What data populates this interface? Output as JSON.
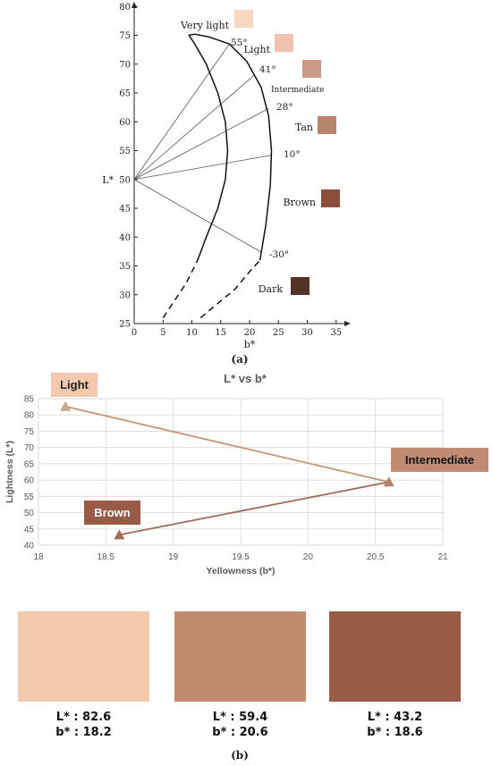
{
  "chart_data": [
    {
      "type": "line",
      "panel_label": "(a)",
      "xlabel": "b*",
      "ylabel": "L*",
      "xlim": [
        0,
        40
      ],
      "ylim": [
        25,
        80
      ],
      "xticks": [
        0,
        5,
        10,
        15,
        20,
        25,
        30,
        35
      ],
      "yticks": [
        25,
        30,
        35,
        40,
        45,
        50,
        55,
        60,
        65,
        70,
        75,
        80
      ],
      "grid": false,
      "origin": [
        0,
        50
      ],
      "boundary_outer_solid": [
        [
          11,
          36
        ],
        [
          12.5,
          40
        ],
        [
          14.5,
          45
        ],
        [
          15.8,
          50
        ],
        [
          16.2,
          55
        ],
        [
          15.8,
          60
        ],
        [
          14.5,
          65
        ],
        [
          12.5,
          70
        ],
        [
          10.5,
          73.5
        ],
        [
          9.5,
          75
        ],
        [
          10.5,
          75.2
        ],
        [
          13,
          74.7
        ],
        [
          16.5,
          73.5
        ],
        [
          19.5,
          70.5
        ],
        [
          22,
          66
        ],
        [
          23.3,
          61
        ],
        [
          23.8,
          55
        ],
        [
          23.6,
          49
        ],
        [
          22.8,
          42
        ],
        [
          21.8,
          36
        ]
      ],
      "boundary_inner_dashed": [
        [
          5,
          26
        ],
        [
          7,
          29
        ],
        [
          9,
          32
        ],
        [
          11,
          36
        ]
      ],
      "boundary_outer_dashed": [
        [
          11.5,
          26
        ],
        [
          14.5,
          28.5
        ],
        [
          17.5,
          31
        ],
        [
          20,
          34
        ],
        [
          21.8,
          36
        ]
      ],
      "hue_angles": [
        {
          "label": "55°",
          "end": [
            16.5,
            73.5
          ]
        },
        {
          "label": "41°",
          "end": [
            20.7,
            68
          ]
        },
        {
          "label": "28°",
          "end": [
            23.3,
            62.3
          ]
        },
        {
          "label": "10°",
          "end": [
            23.8,
            54.2
          ]
        },
        {
          "label": "-30°",
          "end": [
            22,
            37.4
          ]
        }
      ],
      "categories": [
        {
          "name": "Very light",
          "color": "#f8d6c0"
        },
        {
          "name": "Light",
          "color": "#f1c1b2"
        },
        {
          "name": "Intermediate",
          "color": "#c89a86"
        },
        {
          "name": "Tan",
          "color": "#b7856b"
        },
        {
          "name": "Brown",
          "color": "#8c4d3a"
        },
        {
          "name": "Dark",
          "color": "#553228"
        }
      ]
    },
    {
      "type": "scatter",
      "panel_label": "(b)",
      "title": "L* vs b*",
      "xlabel": "Yellowness (b*)",
      "ylabel": "Lightness (L*)",
      "xlim": [
        18,
        21
      ],
      "ylim": [
        40,
        85
      ],
      "xticks": [
        18,
        18.5,
        19,
        19.5,
        20,
        20.5,
        21
      ],
      "yticks": [
        40,
        45,
        50,
        55,
        60,
        65,
        70,
        75,
        80,
        85
      ],
      "grid": true,
      "points": [
        {
          "name": "Light",
          "x": 18.2,
          "y": 82.6,
          "color": "#c7a48f",
          "label_bg": "#f2c9ac",
          "label_color": "#222222"
        },
        {
          "name": "Intermediate",
          "x": 20.6,
          "y": 59.4,
          "color": "#b5806a",
          "label_bg": "#c08b72",
          "label_color": "#111111"
        },
        {
          "name": "Brown",
          "x": 18.6,
          "y": 43.2,
          "color": "#a76b58",
          "label_bg": "#995a46",
          "label_color": "#ffffff"
        }
      ],
      "connector_colors": [
        "#c49779",
        "#a06a58"
      ]
    }
  ],
  "swatches": [
    {
      "color": "#f2c9ab",
      "l_text": "L* : 82.6",
      "b_text": "b* : 18.2"
    },
    {
      "color": "#bf8a6d",
      "l_text": "L* : 59.4",
      "b_text": "b* : 20.6"
    },
    {
      "color": "#985b46",
      "l_text": "L* : 43.2",
      "b_text": "b* : 18.6"
    }
  ]
}
